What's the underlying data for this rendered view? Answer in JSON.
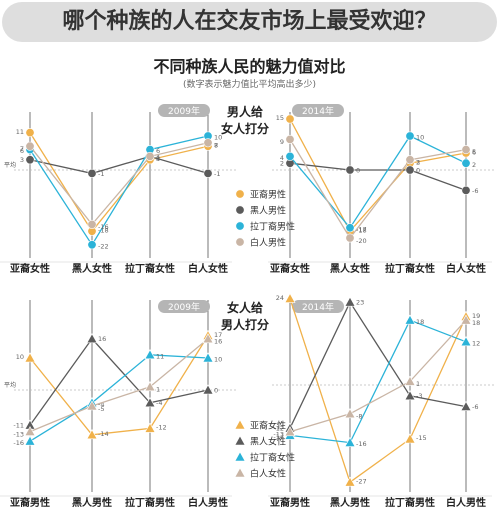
{
  "main_title": "哪个种族的人在交友市场上最受欢迎？",
  "subtitle": "不同种族人民的魅力值对比",
  "note": "(数字表示魅力值比平均高出多少)",
  "avg_label": "平均",
  "colors": {
    "asian": "#f0b14a",
    "black": "#5b5b5b",
    "latino": "#2bb3d8",
    "white": "#c9b5a5"
  },
  "chart_data": [
    {
      "type": "line",
      "panel_label": "2009年",
      "heading": [
        "男人给",
        "女人打分"
      ],
      "categories": [
        "亚裔女性",
        "黑人女性",
        "拉丁裔女性",
        "白人女性"
      ],
      "series": [
        {
          "name": "亚裔男性",
          "marker": "circle",
          "color_key": "asian",
          "values": [
            11,
            -18,
            3,
            7
          ]
        },
        {
          "name": "黑人男性",
          "marker": "circle",
          "color_key": "black",
          "values": [
            3,
            -1,
            4,
            -1
          ]
        },
        {
          "name": "拉丁裔男性",
          "marker": "circle",
          "color_key": "latino",
          "values": [
            6,
            -22,
            6,
            10
          ]
        },
        {
          "name": "白人男性",
          "marker": "circle",
          "color_key": "white",
          "values": [
            7,
            -16,
            4,
            8
          ]
        }
      ]
    },
    {
      "type": "line",
      "panel_label": "2014年",
      "categories": [
        "亚裔女性",
        "黑人女性",
        "拉丁裔女性",
        "白人女性"
      ],
      "series": [
        {
          "name": "亚裔男性",
          "marker": "circle",
          "color_key": "asian",
          "values": [
            15,
            -18,
            2,
            5
          ]
        },
        {
          "name": "黑人男性",
          "marker": "circle",
          "color_key": "black",
          "values": [
            2,
            0,
            0,
            -6
          ]
        },
        {
          "name": "拉丁裔男性",
          "marker": "circle",
          "color_key": "latino",
          "values": [
            4,
            -17,
            10,
            2
          ]
        },
        {
          "name": "白人男性",
          "marker": "circle",
          "color_key": "white",
          "values": [
            9,
            -20,
            3,
            6
          ]
        }
      ]
    },
    {
      "type": "line",
      "panel_label": "2009年",
      "heading": [
        "女人给",
        "男人打分"
      ],
      "categories": [
        "亚裔男性",
        "黑人男性",
        "拉丁裔男性",
        "白人男性"
      ],
      "series": [
        {
          "name": "亚裔女性",
          "marker": "triangle",
          "color_key": "asian",
          "values": [
            10,
            -14,
            -12,
            17
          ]
        },
        {
          "name": "黑人女性",
          "marker": "triangle",
          "color_key": "black",
          "values": [
            -11,
            16,
            -4,
            0
          ]
        },
        {
          "name": "拉丁裔女性",
          "marker": "triangle",
          "color_key": "latino",
          "values": [
            -16,
            -4,
            11,
            10
          ]
        },
        {
          "name": "白人女性",
          "marker": "triangle",
          "color_key": "white",
          "values": [
            -13,
            -5,
            1,
            16
          ]
        }
      ]
    },
    {
      "type": "line",
      "panel_label": "2014年",
      "categories": [
        "亚裔男性",
        "黑人男性",
        "拉丁裔男性",
        "白人男性"
      ],
      "series": [
        {
          "name": "亚裔女性",
          "marker": "triangle",
          "color_key": "asian",
          "values": [
            24,
            -27,
            -15,
            19
          ]
        },
        {
          "name": "黑人女性",
          "marker": "triangle",
          "color_key": "black",
          "values": [
            -12,
            23,
            -3,
            -6
          ]
        },
        {
          "name": "拉丁裔女性",
          "marker": "triangle",
          "color_key": "latino",
          "values": [
            -14,
            -16,
            18,
            12
          ]
        },
        {
          "name": "白人女性",
          "marker": "triangle",
          "color_key": "white",
          "values": [
            -13,
            -8,
            1,
            18
          ]
        }
      ]
    }
  ]
}
